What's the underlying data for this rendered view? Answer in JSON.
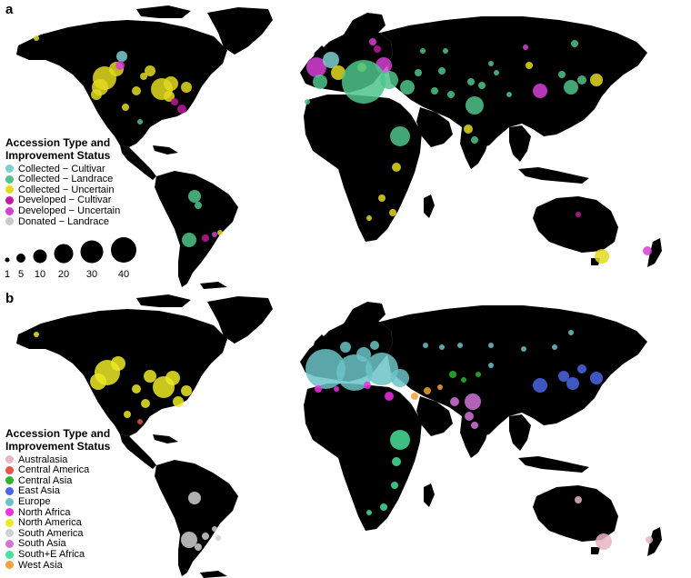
{
  "panel_a": {
    "letter": "a",
    "legend": {
      "title_line1": "Accession Type and",
      "title_line2": "Improvement Status",
      "items": [
        {
          "label": "Collected − Cultivar",
          "color": "#7ecfd0"
        },
        {
          "label": "Collected − Landrace",
          "color": "#4ec48a"
        },
        {
          "label": "Collected − Uncertain",
          "color": "#e3da1f"
        },
        {
          "label": "Developed − Cultivar",
          "color": "#c2189f"
        },
        {
          "label": "Developed − Uncertain",
          "color": "#d63fd6"
        },
        {
          "label": "Donated − Landrace",
          "color": "#c9c9c9"
        }
      ]
    },
    "size_legend": [
      "1",
      "5",
      "10",
      "20",
      "30",
      "40"
    ]
  },
  "panel_b": {
    "letter": "b",
    "legend": {
      "title_line1": "Accession Type and",
      "title_line2": "Improvement Status",
      "items": [
        {
          "label": "Australasia",
          "color": "#e8b5c4"
        },
        {
          "label": "Central America",
          "color": "#e8524b"
        },
        {
          "label": "Central Asia",
          "color": "#2bb52b"
        },
        {
          "label": "East Asia",
          "color": "#4a66e3"
        },
        {
          "label": "Europe",
          "color": "#6bc3c6"
        },
        {
          "label": "North Africa",
          "color": "#ef2fe2"
        },
        {
          "label": "North America",
          "color": "#ecea24"
        },
        {
          "label": "South America",
          "color": "#cfcfcf"
        },
        {
          "label": "South Asia",
          "color": "#d173d7"
        },
        {
          "label": "South+E Africa",
          "color": "#48e09a"
        },
        {
          "label": "West Asia",
          "color": "#f2a23a"
        }
      ]
    }
  }
}
